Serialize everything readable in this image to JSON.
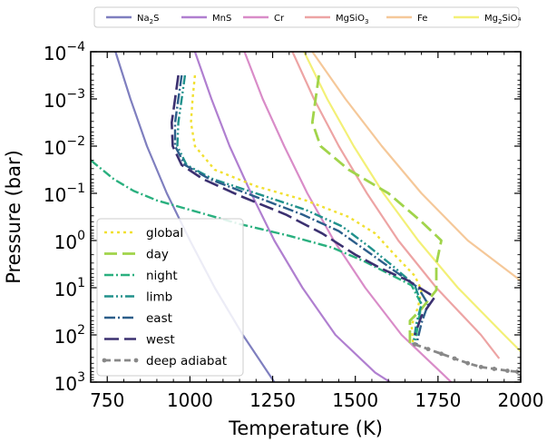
{
  "chart_data": {
    "type": "line",
    "title": "",
    "xlabel": "Temperature (K)",
    "ylabel": "Pressure (bar)",
    "xlim": [
      700,
      2000
    ],
    "ylim_log10": [
      -4,
      3
    ],
    "y_axis": "log, inverted (low pressure at top)",
    "x_ticks": [
      750,
      1000,
      1250,
      1500,
      1750,
      2000
    ],
    "x_tick_labels": [
      "750",
      "1000",
      "1250",
      "1500",
      "1750",
      "2000"
    ],
    "y_tick_exponents": [
      -4,
      -3,
      -2,
      -1,
      0,
      1,
      2,
      3
    ],
    "y_tick_labels": [
      {
        "base": "10",
        "exp": "−4"
      },
      {
        "base": "10",
        "exp": "−3"
      },
      {
        "base": "10",
        "exp": "−2"
      },
      {
        "base": "10",
        "exp": "−1"
      },
      {
        "base": "10",
        "exp": "0"
      },
      {
        "base": "10",
        "exp": "1"
      },
      {
        "base": "10",
        "exp": "2"
      },
      {
        "base": "10",
        "exp": "3"
      }
    ],
    "condensation_legend": [
      {
        "base": "Na",
        "sub": "2",
        "rest": "S",
        "color": "#7f7fbf"
      },
      {
        "base": "MnS",
        "sub": "",
        "rest": "",
        "color": "#b07fd0"
      },
      {
        "base": "Cr",
        "sub": "",
        "rest": "",
        "color": "#d98cc8"
      },
      {
        "base": "MgSiO",
        "sub": "3",
        "rest": "",
        "color": "#eda4a4"
      },
      {
        "base": "Fe",
        "sub": "",
        "rest": "",
        "color": "#f5c899"
      },
      {
        "base": "Mg",
        "sub": "2",
        "rest": "SiO₄",
        "color": "#f3f077"
      }
    ],
    "condensation_curves": [
      {
        "name": "Na2S",
        "color": "#7f7fbf",
        "points": [
          [
            775,
            -4
          ],
          [
            820,
            -3
          ],
          [
            870,
            -2
          ],
          [
            930,
            -1
          ],
          [
            1000,
            0
          ],
          [
            1075,
            1
          ],
          [
            1160,
            2
          ],
          [
            1255,
            3
          ]
        ]
      },
      {
        "name": "MnS",
        "color": "#b07fd0",
        "points": [
          [
            1015,
            -4
          ],
          [
            1065,
            -3
          ],
          [
            1120,
            -2
          ],
          [
            1185,
            -1
          ],
          [
            1255,
            0
          ],
          [
            1340,
            1
          ],
          [
            1440,
            2
          ],
          [
            1560,
            2.8
          ],
          [
            1605,
            3
          ]
        ]
      },
      {
        "name": "Cr",
        "color": "#d98cc8",
        "points": [
          [
            1165,
            -4
          ],
          [
            1220,
            -3
          ],
          [
            1285,
            -2
          ],
          [
            1355,
            -1
          ],
          [
            1435,
            0
          ],
          [
            1530,
            1
          ],
          [
            1640,
            2
          ],
          [
            1760,
            2.8
          ],
          [
            1790,
            3
          ]
        ]
      },
      {
        "name": "MgSiO3",
        "color": "#eda4a4",
        "points": [
          [
            1310,
            -4
          ],
          [
            1375,
            -3
          ],
          [
            1450,
            -2
          ],
          [
            1535,
            -1
          ],
          [
            1630,
            0
          ],
          [
            1745,
            1
          ],
          [
            1880,
            2
          ],
          [
            1935,
            2.5
          ]
        ]
      },
      {
        "name": "Mg2SiO4",
        "color": "#f3f077",
        "points": [
          [
            1345,
            -4
          ],
          [
            1415,
            -3
          ],
          [
            1495,
            -2
          ],
          [
            1585,
            -1
          ],
          [
            1690,
            0
          ],
          [
            1810,
            1
          ],
          [
            1950,
            2
          ],
          [
            2000,
            2.35
          ]
        ]
      },
      {
        "name": "Fe",
        "color": "#f5c899",
        "points": [
          [
            1370,
            -4
          ],
          [
            1470,
            -3
          ],
          [
            1580,
            -2
          ],
          [
            1700,
            -1
          ],
          [
            1840,
            0
          ],
          [
            2000,
            0.85
          ]
        ]
      }
    ],
    "series": [
      {
        "name": "global",
        "color": "#f1e031",
        "dash": "3,4",
        "width": 2.4,
        "points": [
          [
            1015,
            -3.5
          ],
          [
            1008,
            -3
          ],
          [
            1003,
            -2.5
          ],
          [
            1015,
            -2
          ],
          [
            1075,
            -1.5
          ],
          [
            1200,
            -1.15
          ],
          [
            1350,
            -0.85
          ],
          [
            1480,
            -0.5
          ],
          [
            1560,
            -0.15
          ],
          [
            1625,
            0.35
          ],
          [
            1680,
            0.75
          ],
          [
            1700,
            1.05
          ],
          [
            1690,
            1.4
          ],
          [
            1670,
            1.8
          ],
          [
            1675,
            2.2
          ]
        ]
      },
      {
        "name": "day",
        "color": "#a1d44a",
        "dash": "14,6",
        "width": 2.8,
        "points": [
          [
            1390,
            -3.5
          ],
          [
            1380,
            -3
          ],
          [
            1370,
            -2.5
          ],
          [
            1395,
            -2
          ],
          [
            1480,
            -1.5
          ],
          [
            1600,
            -1
          ],
          [
            1700,
            -0.4
          ],
          [
            1760,
            0
          ],
          [
            1745,
            0.5
          ],
          [
            1745,
            1.05
          ],
          [
            1700,
            1.45
          ],
          [
            1665,
            1.7
          ],
          [
            1665,
            2.25
          ]
        ]
      },
      {
        "name": "night",
        "color": "#2ab07f",
        "dash": "10,3,2,3",
        "width": 2.4,
        "points": [
          [
            700,
            -1.7
          ],
          [
            770,
            -1.3
          ],
          [
            830,
            -1.05
          ],
          [
            900,
            -0.85
          ],
          [
            1000,
            -0.65
          ],
          [
            1150,
            -0.35
          ],
          [
            1300,
            -0.1
          ],
          [
            1430,
            0.15
          ],
          [
            1530,
            0.45
          ],
          [
            1600,
            0.7
          ],
          [
            1670,
            0.95
          ],
          [
            1700,
            1.35
          ],
          [
            1690,
            1.75
          ],
          [
            1680,
            2.2
          ]
        ]
      },
      {
        "name": "limb",
        "color": "#21918c",
        "dash": "10,3,2,3,2,3",
        "width": 2.4,
        "points": [
          [
            985,
            -3.5
          ],
          [
            975,
            -3
          ],
          [
            965,
            -2.5
          ],
          [
            962,
            -2
          ],
          [
            990,
            -1.6
          ],
          [
            1070,
            -1.3
          ],
          [
            1200,
            -1
          ],
          [
            1350,
            -0.65
          ],
          [
            1460,
            -0.3
          ],
          [
            1545,
            0.15
          ],
          [
            1615,
            0.55
          ],
          [
            1680,
            0.95
          ],
          [
            1700,
            1.35
          ],
          [
            1685,
            1.75
          ],
          [
            1675,
            2.2
          ]
        ]
      },
      {
        "name": "east",
        "color": "#2c5e8a",
        "dash": "12,3,2,3",
        "width": 2.4,
        "points": [
          [
            975,
            -3.5
          ],
          [
            965,
            -3
          ],
          [
            955,
            -2.5
          ],
          [
            955,
            -2
          ],
          [
            985,
            -1.6
          ],
          [
            1060,
            -1.3
          ],
          [
            1190,
            -0.95
          ],
          [
            1340,
            -0.55
          ],
          [
            1450,
            -0.2
          ],
          [
            1540,
            0.25
          ],
          [
            1620,
            0.65
          ],
          [
            1690,
            1
          ],
          [
            1720,
            1.35
          ],
          [
            1700,
            1.75
          ],
          [
            1685,
            2.2
          ]
        ]
      },
      {
        "name": "west",
        "color": "#3b3070",
        "dash": "16,6",
        "width": 2.6,
        "points": [
          [
            965,
            -3.5
          ],
          [
            955,
            -3
          ],
          [
            945,
            -2.5
          ],
          [
            948,
            -2
          ],
          [
            975,
            -1.6
          ],
          [
            1040,
            -1.3
          ],
          [
            1150,
            -0.95
          ],
          [
            1290,
            -0.55
          ],
          [
            1400,
            -0.15
          ],
          [
            1500,
            0.3
          ],
          [
            1580,
            0.6
          ],
          [
            1660,
            0.85
          ],
          [
            1740,
            1.2
          ],
          [
            1700,
            1.6
          ],
          [
            1680,
            2
          ]
        ]
      },
      {
        "name": "deep adiabat",
        "color": "#888888",
        "dash": "7,4",
        "width": 2.8,
        "points": [
          [
            1680,
            2.2
          ],
          [
            1720,
            2.3
          ],
          [
            1760,
            2.4
          ],
          [
            1800,
            2.5
          ],
          [
            1840,
            2.6
          ],
          [
            1880,
            2.68
          ],
          [
            1920,
            2.72
          ],
          [
            1960,
            2.76
          ],
          [
            1990,
            2.78
          ]
        ],
        "markers": true
      }
    ]
  }
}
